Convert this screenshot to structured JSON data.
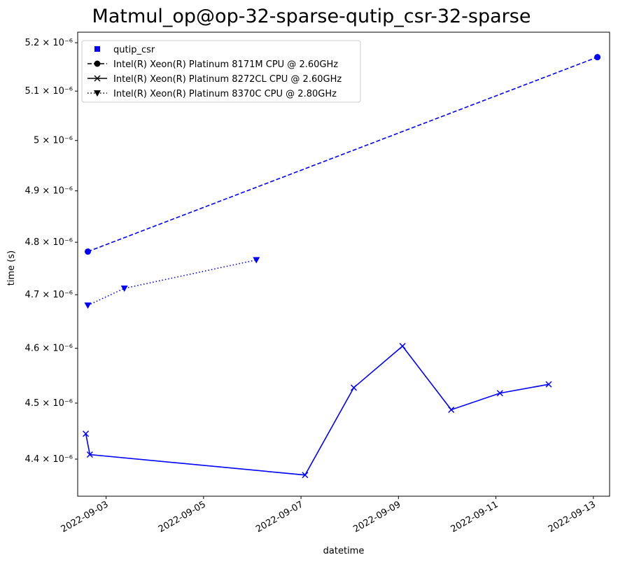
{
  "chart_data": {
    "type": "line",
    "title": "Matmul_op@op-32-sparse-qutip_csr-32-sparse",
    "xlabel": "datetime",
    "ylabel": "time (s)",
    "xlim": [
      "2022-09-02T10:00",
      "2022-09-13T08:00"
    ],
    "ylim": [
      4.335e-06,
      5.222e-06
    ],
    "x_ticks": [
      "2022-09-03",
      "2022-09-05",
      "2022-09-07",
      "2022-09-09",
      "2022-09-11",
      "2022-09-13"
    ],
    "y_ticks": [
      {
        "value": 4.4e-06,
        "label": "4.4 × 10⁻⁶"
      },
      {
        "value": 4.5e-06,
        "label": "4.5 × 10⁻⁶"
      },
      {
        "value": 4.6e-06,
        "label": "4.6 × 10⁻⁶"
      },
      {
        "value": 4.7e-06,
        "label": "4.7 × 10⁻⁶"
      },
      {
        "value": 4.8e-06,
        "label": "4.8 × 10⁻⁶"
      },
      {
        "value": 4.9e-06,
        "label": "4.9 × 10⁻⁶"
      },
      {
        "value": 5e-06,
        "label": "5 × 10⁻⁶"
      },
      {
        "value": 5.1e-06,
        "label": "5.1 × 10⁻⁶"
      },
      {
        "value": 5.2e-06,
        "label": "5.2 × 10⁻⁶"
      }
    ],
    "y_scale": "log",
    "grid": false,
    "legend_position": "top-left",
    "color": "#0000ff",
    "legend": [
      {
        "label": "qutip_csr",
        "marker": "square",
        "line": "none"
      },
      {
        "label": "Intel(R) Xeon(R) Platinum 8171M CPU @ 2.60GHz",
        "marker": "circle",
        "line": "dashed"
      },
      {
        "label": "Intel(R) Xeon(R) Platinum 8272CL CPU @ 2.60GHz",
        "marker": "x",
        "line": "solid"
      },
      {
        "label": "Intel(R) Xeon(R) Platinum 8370C CPU @ 2.80GHz",
        "marker": "triangle-down",
        "line": "dotted"
      }
    ],
    "series": [
      {
        "name": "Intel(R) Xeon(R) Platinum 8171M CPU @ 2.60GHz",
        "marker": "circle",
        "line": "dashed",
        "x": [
          "2022-09-02T15:00",
          "2022-09-13T02:00"
        ],
        "y": [
          4.782e-06,
          5.17e-06
        ]
      },
      {
        "name": "Intel(R) Xeon(R) Platinum 8272CL CPU @ 2.60GHz",
        "marker": "x",
        "line": "solid",
        "x": [
          "2022-09-02T14:00",
          "2022-09-02T16:00",
          "2022-09-07T02:00",
          "2022-09-08T02:00",
          "2022-09-09T02:00",
          "2022-09-10T02:00",
          "2022-09-11T02:00",
          "2022-09-12T02:00"
        ],
        "y": [
          4.445e-06,
          4.408e-06,
          4.372e-06,
          4.528e-06,
          4.604e-06,
          4.488e-06,
          4.518e-06,
          4.534e-06
        ]
      },
      {
        "name": "Intel(R) Xeon(R) Platinum 8370C CPU @ 2.80GHz",
        "marker": "triangle-down",
        "line": "dotted",
        "x": [
          "2022-09-02T15:00",
          "2022-09-03T09:00",
          "2022-09-06T02:00"
        ],
        "y": [
          4.68e-06,
          4.712e-06,
          4.766e-06
        ]
      }
    ]
  }
}
